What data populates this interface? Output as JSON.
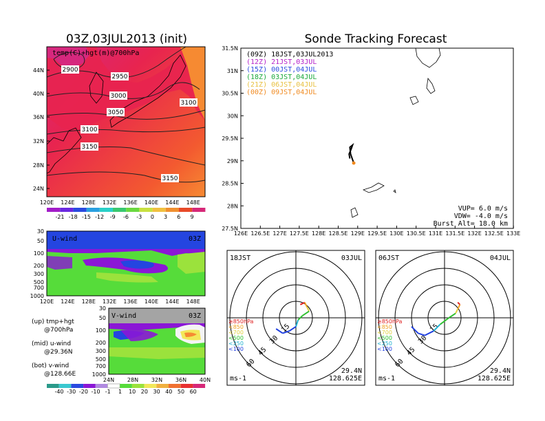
{
  "colors": {
    "warm_red": "#e8244f",
    "orange_red": "#f35a30",
    "orange": "#f68a32",
    "magenta": "#d6287e",
    "green": "#56dc3a",
    "light_green": "#9be23c",
    "purple": "#8b16d6",
    "blue": "#2445e0",
    "dark_blue": "#2a1fd8",
    "grey": "#a4a4a4"
  },
  "panel_temp": {
    "title": "03Z,03JUL2013 (init)",
    "label": "temp(C)+hgt(m)@700hPa",
    "lat_ticks": [
      "44N",
      "40N",
      "36N",
      "32N",
      "28N",
      "24N"
    ],
    "lon_ticks": [
      "120E",
      "124E",
      "128E",
      "132E",
      "136E",
      "140E",
      "144E",
      "148E"
    ],
    "contours": [
      "2900",
      "2950",
      "3000",
      "3050",
      "3100",
      "3100",
      "3150",
      "3150"
    ],
    "colorbar_labels": [
      "-21",
      "-18",
      "-15",
      "-12",
      "-9",
      "-6",
      "-3",
      "0",
      "3",
      "6",
      "9"
    ]
  },
  "panel_u": {
    "label": "U-wind",
    "time": "03Z",
    "p_ticks": [
      "30",
      "50",
      "100",
      "200",
      "300",
      "500",
      "700",
      "1000"
    ],
    "lon_ticks": [
      "120E",
      "124E",
      "128E",
      "132E",
      "136E",
      "140E",
      "144E",
      "148E"
    ]
  },
  "panel_v": {
    "label": "V-wind",
    "time": "03Z",
    "p_ticks": [
      "30",
      "50",
      "100",
      "200",
      "300",
      "500",
      "700",
      "1000"
    ],
    "lat_ticks": [
      "24N",
      "28N",
      "32N",
      "36N",
      "40N"
    ],
    "colorbar_labels": [
      "-40",
      "-30",
      "-20",
      "-10",
      "-1",
      "1",
      "10",
      "20",
      "30",
      "40",
      "50",
      "60"
    ]
  },
  "legend_notes": [
    {
      "line1": "(up) tmp+hgt",
      "line2": "@700hPa"
    },
    {
      "line1": "(mid) u-wind",
      "line2": "@29.36N"
    },
    {
      "line1": "(bot) v-wind",
      "line2": "@128.66E"
    }
  ],
  "panel_track": {
    "title": "Sonde Tracking Forecast",
    "lat_ticks": [
      "31.5N",
      "31N",
      "30.5N",
      "30N",
      "29.5N",
      "29N",
      "28.5N",
      "28N",
      "27.5N"
    ],
    "lon_ticks": [
      "126E",
      "126.5E",
      "127E",
      "127.5E",
      "128E",
      "128.5E",
      "129E",
      "129.5E",
      "130E",
      "130.5E",
      "131E",
      "131.5E",
      "132E",
      "132.5E",
      "133E"
    ],
    "times": [
      {
        "text": "(09Z) 18JST,03JUL2013",
        "color": "#000000"
      },
      {
        "text": "(12Z) 21JST,03JUL",
        "color": "#b41ec8"
      },
      {
        "text": "(15Z) 00JST,04JUL",
        "color": "#2a4ae0"
      },
      {
        "text": "(18Z) 03JST,04JUL",
        "color": "#1aa83a"
      },
      {
        "text": "(21Z) 06JST,04JUL",
        "color": "#e8c040"
      },
      {
        "text": "(00Z) 09JST,04JUL",
        "color": "#f08a20"
      }
    ],
    "vup": "VUP= 6.0 m/s",
    "vdw": "VDW= -4.0 m/s",
    "burst": "Burst Alt= 18.0 km"
  },
  "hodographs": [
    {
      "time_label": "18JST",
      "date_label": "03JUL",
      "lat": "29.4N",
      "lon": "128.625E",
      "unit": "ms-1",
      "rings": [
        "15",
        "30",
        "45",
        "60"
      ],
      "levels": [
        {
          "text": "≥850hPa",
          "color": "#e02020"
        },
        {
          "text": "<850",
          "color": "#f0a020"
        },
        {
          "text": "<700",
          "color": "#e0d040"
        },
        {
          "text": "<500",
          "color": "#30c030"
        },
        {
          "text": "<250",
          "color": "#20b0d0"
        },
        {
          "text": "<100",
          "color": "#2040e0"
        }
      ]
    },
    {
      "time_label": "06JST",
      "date_label": "04JUL",
      "lat": "29.4N",
      "lon": "128.625E",
      "unit": "ms-1",
      "rings": [
        "15",
        "30",
        "45",
        "60"
      ],
      "levels": [
        {
          "text": "≥850hPa",
          "color": "#e02020"
        },
        {
          "text": "<850",
          "color": "#f0a020"
        },
        {
          "text": "<700",
          "color": "#e0d040"
        },
        {
          "text": "<500",
          "color": "#30c030"
        },
        {
          "text": "<250",
          "color": "#20b0d0"
        },
        {
          "text": "<100",
          "color": "#2040e0"
        }
      ]
    }
  ],
  "chart_data": [
    {
      "type": "heatmap",
      "title": "03Z,03JUL2013 (init)",
      "subtitle": "temp(C)+hgt(m)@700hPa",
      "xlim": [
        120,
        150
      ],
      "ylim": [
        22,
        48
      ],
      "colorbar": [
        -21,
        -18,
        -15,
        -12,
        -9,
        -6,
        -3,
        0,
        3,
        6,
        9
      ],
      "contour_levels": [
        2900,
        2950,
        3000,
        3050,
        3100,
        3150
      ]
    },
    {
      "type": "heatmap",
      "title": "U-wind",
      "xlim": [
        120,
        150
      ],
      "ylim": [
        1000,
        30
      ],
      "log_scale_y": true
    },
    {
      "type": "heatmap",
      "title": "V-wind",
      "xlim": [
        24,
        40
      ],
      "ylim": [
        1000,
        30
      ],
      "log_scale_y": true,
      "colorbar": [
        -40,
        -30,
        -20,
        -10,
        -1,
        1,
        10,
        20,
        30,
        40,
        50,
        60
      ]
    },
    {
      "type": "line",
      "title": "Sonde Tracking Forecast",
      "xlim": [
        126,
        133
      ],
      "ylim": [
        27.5,
        31.5
      ],
      "series": [
        {
          "x": [
            128.8,
            128.78,
            128.83,
            128.87,
            128.8,
            128.82,
            128.9
          ],
          "y": [
            29.05,
            29.15,
            29.25,
            29.35,
            29.3,
            29.15,
            28.95
          ]
        }
      ]
    },
    {
      "type": "line",
      "title": "18JST 03JUL",
      "series": [
        {
          "u": [
            4,
            8,
            10,
            12,
            6,
            2,
            0,
            -6,
            -12,
            -18
          ],
          "v": [
            12,
            14,
            10,
            6,
            2,
            -2,
            -8,
            -12,
            -14,
            -10
          ]
        }
      ]
    },
    {
      "type": "line",
      "title": "06JST 04JUL",
      "series": [
        {
          "u": [
            12,
            14,
            12,
            10,
            4,
            -4,
            -10,
            -18,
            -24,
            -30
          ],
          "v": [
            14,
            12,
            8,
            4,
            0,
            -6,
            -12,
            -16,
            -14,
            -8
          ]
        }
      ]
    }
  ]
}
